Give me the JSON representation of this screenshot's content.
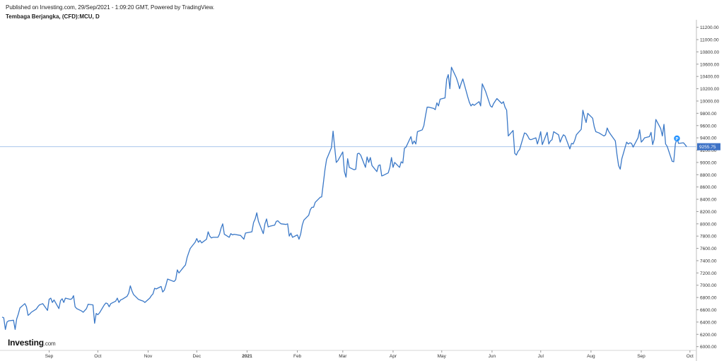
{
  "header": {
    "published": "Published on Investing.com, 29/Sep/2021 - 1:09:20 GMT, Powered by TradingView.",
    "symbol": "Tembaga Berjangka, (CFD):MCU, D"
  },
  "logo": {
    "main": "Investing",
    "suffix": ".com"
  },
  "colors": {
    "line": "#3a78c7",
    "price_line": "#a9c6ec",
    "price_badge": "#3d72c6",
    "marker": "#1e90ff",
    "grid_text": "#333333"
  },
  "chart_data": {
    "type": "line",
    "title": "Tembaga Berjangka, (CFD):MCU, D",
    "xlabel": "",
    "ylabel": "",
    "x_range": [
      "2020-08-03",
      "2021-10-05"
    ],
    "ylim": [
      5950,
      11300
    ],
    "grid": false,
    "y_ticks": [
      "11200.00",
      "11000.00",
      "10800.00",
      "10600.00",
      "10400.00",
      "10200.00",
      "10000.00",
      "9800.00",
      "9600.00",
      "9400.00",
      "9200.00",
      "9000.00",
      "8800.00",
      "8600.00",
      "8400.00",
      "8200.00",
      "8000.00",
      "7800.00",
      "7600.00",
      "7400.00",
      "7200.00",
      "7000.00",
      "6800.00",
      "6600.00",
      "6400.00",
      "6200.00",
      "6000.00"
    ],
    "x_ticks": [
      {
        "label": "Sep",
        "date": "2020-09-01"
      },
      {
        "label": "Oct",
        "date": "2020-10-01"
      },
      {
        "label": "Nov",
        "date": "2020-11-01"
      },
      {
        "label": "Dec",
        "date": "2020-12-01"
      },
      {
        "label": "2021",
        "date": "2021-01-01"
      },
      {
        "label": "Feb",
        "date": "2021-02-01"
      },
      {
        "label": "Mar",
        "date": "2021-03-01"
      },
      {
        "label": "Apr",
        "date": "2021-04-01"
      },
      {
        "label": "May",
        "date": "2021-05-01"
      },
      {
        "label": "Jun",
        "date": "2021-06-01"
      },
      {
        "label": "Jul",
        "date": "2021-07-01"
      },
      {
        "label": "Aug",
        "date": "2021-08-01"
      },
      {
        "label": "Sep",
        "date": "2021-09-01"
      },
      {
        "label": "Oct",
        "date": "2021-10-01"
      }
    ],
    "last_price": 9255.75,
    "last_price_label": "9255.75",
    "marker": {
      "label": "P",
      "date": "2021-09-23",
      "value": 9390
    },
    "series": [
      {
        "x": [
          "2020-08-03",
          "2020-08-04",
          "2020-08-05",
          "2020-08-06",
          "2020-08-07",
          "2020-08-10",
          "2020-08-11",
          "2020-08-12",
          "2020-08-13",
          "2020-08-14",
          "2020-08-17",
          "2020-08-18",
          "2020-08-19",
          "2020-08-20",
          "2020-08-21",
          "2020-08-24",
          "2020-08-25",
          "2020-08-26",
          "2020-08-27",
          "2020-08-28",
          "2020-08-31",
          "2020-09-01",
          "2020-09-02",
          "2020-09-03",
          "2020-09-04",
          "2020-09-07",
          "2020-09-08",
          "2020-09-09",
          "2020-09-10",
          "2020-09-11",
          "2020-09-14",
          "2020-09-15",
          "2020-09-16",
          "2020-09-17",
          "2020-09-18",
          "2020-09-21",
          "2020-09-22",
          "2020-09-23",
          "2020-09-24",
          "2020-09-25",
          "2020-09-28",
          "2020-09-29",
          "2020-09-30",
          "2020-10-01",
          "2020-10-02",
          "2020-10-05",
          "2020-10-06",
          "2020-10-07",
          "2020-10-08",
          "2020-10-09",
          "2020-10-12",
          "2020-10-13",
          "2020-10-14",
          "2020-10-15",
          "2020-10-16",
          "2020-10-19",
          "2020-10-20",
          "2020-10-21",
          "2020-10-22",
          "2020-10-23",
          "2020-10-26",
          "2020-10-27",
          "2020-10-28",
          "2020-10-29",
          "2020-10-30",
          "2020-11-02",
          "2020-11-03",
          "2020-11-04",
          "2020-11-05",
          "2020-11-06",
          "2020-11-09",
          "2020-11-10",
          "2020-11-11",
          "2020-11-12",
          "2020-11-13",
          "2020-11-16",
          "2020-11-17",
          "2020-11-18",
          "2020-11-19",
          "2020-11-20",
          "2020-11-23",
          "2020-11-24",
          "2020-11-25",
          "2020-11-26",
          "2020-11-27",
          "2020-11-30",
          "2020-12-01",
          "2020-12-02",
          "2020-12-03",
          "2020-12-04",
          "2020-12-07",
          "2020-12-08",
          "2020-12-09",
          "2020-12-10",
          "2020-12-11",
          "2020-12-14",
          "2020-12-15",
          "2020-12-16",
          "2020-12-17",
          "2020-12-18",
          "2020-12-21",
          "2020-12-22",
          "2020-12-23",
          "2020-12-24",
          "2020-12-28",
          "2020-12-29",
          "2020-12-30",
          "2020-12-31",
          "2021-01-04",
          "2021-01-05",
          "2021-01-06",
          "2021-01-07",
          "2021-01-08",
          "2021-01-11",
          "2021-01-12",
          "2021-01-13",
          "2021-01-14",
          "2021-01-15",
          "2021-01-18",
          "2021-01-19",
          "2021-01-20",
          "2021-01-21",
          "2021-01-22",
          "2021-01-25",
          "2021-01-26",
          "2021-01-27",
          "2021-01-28",
          "2021-01-29",
          "2021-02-01",
          "2021-02-02",
          "2021-02-03",
          "2021-02-04",
          "2021-02-05",
          "2021-02-08",
          "2021-02-09",
          "2021-02-10",
          "2021-02-11",
          "2021-02-12",
          "2021-02-15",
          "2021-02-16",
          "2021-02-17",
          "2021-02-18",
          "2021-02-19",
          "2021-02-22",
          "2021-02-23",
          "2021-02-24",
          "2021-02-25",
          "2021-02-26",
          "2021-03-01",
          "2021-03-02",
          "2021-03-03",
          "2021-03-04",
          "2021-03-05",
          "2021-03-08",
          "2021-03-09",
          "2021-03-10",
          "2021-03-11",
          "2021-03-12",
          "2021-03-15",
          "2021-03-16",
          "2021-03-17",
          "2021-03-18",
          "2021-03-19",
          "2021-03-22",
          "2021-03-23",
          "2021-03-24",
          "2021-03-25",
          "2021-03-26",
          "2021-03-29",
          "2021-03-30",
          "2021-03-31",
          "2021-04-01",
          "2021-04-02",
          "2021-04-05",
          "2021-04-06",
          "2021-04-07",
          "2021-04-08",
          "2021-04-09",
          "2021-04-12",
          "2021-04-13",
          "2021-04-14",
          "2021-04-15",
          "2021-04-16",
          "2021-04-19",
          "2021-04-20",
          "2021-04-21",
          "2021-04-22",
          "2021-04-23",
          "2021-04-26",
          "2021-04-27",
          "2021-04-28",
          "2021-04-29",
          "2021-04-30",
          "2021-05-03",
          "2021-05-04",
          "2021-05-05",
          "2021-05-06",
          "2021-05-07",
          "2021-05-10",
          "2021-05-11",
          "2021-05-12",
          "2021-05-13",
          "2021-05-14",
          "2021-05-17",
          "2021-05-18",
          "2021-05-19",
          "2021-05-20",
          "2021-05-21",
          "2021-05-24",
          "2021-05-25",
          "2021-05-26",
          "2021-05-27",
          "2021-05-28",
          "2021-05-31",
          "2021-06-01",
          "2021-06-02",
          "2021-06-03",
          "2021-06-04",
          "2021-06-07",
          "2021-06-08",
          "2021-06-09",
          "2021-06-10",
          "2021-06-11",
          "2021-06-14",
          "2021-06-15",
          "2021-06-16",
          "2021-06-17",
          "2021-06-18",
          "2021-06-21",
          "2021-06-22",
          "2021-06-23",
          "2021-06-24",
          "2021-06-25",
          "2021-06-28",
          "2021-06-29",
          "2021-06-30",
          "2021-07-01",
          "2021-07-02",
          "2021-07-05",
          "2021-07-06",
          "2021-07-07",
          "2021-07-08",
          "2021-07-09",
          "2021-07-12",
          "2021-07-13",
          "2021-07-14",
          "2021-07-15",
          "2021-07-16",
          "2021-07-19",
          "2021-07-20",
          "2021-07-21",
          "2021-07-22",
          "2021-07-23",
          "2021-07-26",
          "2021-07-27",
          "2021-07-28",
          "2021-07-29",
          "2021-07-30",
          "2021-08-02",
          "2021-08-03",
          "2021-08-04",
          "2021-08-05",
          "2021-08-06",
          "2021-08-09",
          "2021-08-10",
          "2021-08-11",
          "2021-08-12",
          "2021-08-13",
          "2021-08-16",
          "2021-08-17",
          "2021-08-18",
          "2021-08-19",
          "2021-08-20",
          "2021-08-23",
          "2021-08-24",
          "2021-08-25",
          "2021-08-26",
          "2021-08-27",
          "2021-08-30",
          "2021-08-31",
          "2021-09-01",
          "2021-09-02",
          "2021-09-03",
          "2021-09-06",
          "2021-09-07",
          "2021-09-08",
          "2021-09-09",
          "2021-09-10",
          "2021-09-13",
          "2021-09-14",
          "2021-09-15",
          "2021-09-16",
          "2021-09-17",
          "2021-09-20",
          "2021-09-21",
          "2021-09-22",
          "2021-09-23",
          "2021-09-24",
          "2021-09-27",
          "2021-09-28",
          "2021-09-29"
        ],
        "values": [
          6480,
          6470,
          6280,
          6400,
          6420,
          6430,
          6280,
          6450,
          6530,
          6630,
          6700,
          6650,
          6510,
          6530,
          6560,
          6610,
          6650,
          6680,
          6690,
          6700,
          6590,
          6770,
          6790,
          6720,
          6760,
          6620,
          6750,
          6780,
          6720,
          6790,
          6770,
          6780,
          6830,
          6650,
          6620,
          6580,
          6560,
          6590,
          6620,
          6690,
          6680,
          6380,
          6540,
          6520,
          6550,
          6680,
          6710,
          6700,
          6650,
          6700,
          6740,
          6790,
          6720,
          6760,
          6770,
          6820,
          6870,
          6990,
          6910,
          6850,
          6770,
          6760,
          6750,
          6740,
          6720,
          6790,
          6830,
          6860,
          6950,
          6940,
          6980,
          6890,
          6920,
          7000,
          7100,
          7070,
          7060,
          7090,
          7250,
          7200,
          7300,
          7330,
          7450,
          7530,
          7600,
          7700,
          7760,
          7700,
          7730,
          7690,
          7750,
          7870,
          7800,
          7770,
          7780,
          7780,
          7830,
          7930,
          8000,
          7830,
          7780,
          7840,
          7820,
          7830,
          7810,
          7780,
          7750,
          7850,
          7870,
          8020,
          8080,
          8180,
          8040,
          7840,
          8000,
          8080,
          7950,
          7960,
          7980,
          8040,
          8050,
          8020,
          8000,
          7990,
          8000,
          7800,
          7850,
          7780,
          7820,
          7750,
          7830,
          7980,
          8060,
          8140,
          8230,
          8270,
          8270,
          8350,
          8430,
          8440,
          8660,
          8880,
          9050,
          9240,
          9510,
          9240,
          9000,
          9030,
          9170,
          8850,
          8760,
          9060,
          8920,
          8880,
          8890,
          9140,
          9150,
          9120,
          8920,
          9090,
          9000,
          9080,
          8950,
          8850,
          8950,
          8960,
          8780,
          8790,
          8830,
          8920,
          9080,
          8920,
          9000,
          8920,
          9010,
          8990,
          9230,
          9250,
          9420,
          9300,
          9350,
          9300,
          9500,
          9530,
          9600,
          9760,
          9900,
          9900,
          9880,
          9860,
          9970,
          9920,
          10030,
          10050,
          10350,
          10430,
          10200,
          10550,
          10380,
          10300,
          10200,
          10290,
          10360,
          10070,
          9980,
          9920,
          9950,
          9930,
          9990,
          9920,
          10280,
          10220,
          10160,
          9920,
          9900,
          9960,
          10000,
          10040,
          9960,
          9990,
          9900,
          9850,
          9430,
          9520,
          9150,
          9120,
          9180,
          9210,
          9480,
          9470,
          9430,
          9380,
          9370,
          9400,
          9300,
          9390,
          9500,
          9290,
          9490,
          9300,
          9350,
          9370,
          9500,
          9450,
          9330,
          9400,
          9450,
          9430,
          9220,
          9310,
          9300,
          9360,
          9450,
          9540,
          9850,
          9740,
          9650,
          9800,
          9720,
          9580,
          9500,
          9490,
          9480,
          9430,
          9450,
          9560,
          9500,
          9460,
          9350,
          9130,
          8950,
          8890,
          9060,
          9330,
          9300,
          9320,
          9310,
          9250,
          9400,
          9530,
          9330,
          9360,
          9400,
          9420,
          9490,
          9290,
          9380,
          9700,
          9550,
          9430,
          9620,
          9300,
          9260,
          9020,
          9010,
          9300,
          9390,
          9310,
          9320,
          9290,
          9255.75
        ]
      }
    ]
  }
}
